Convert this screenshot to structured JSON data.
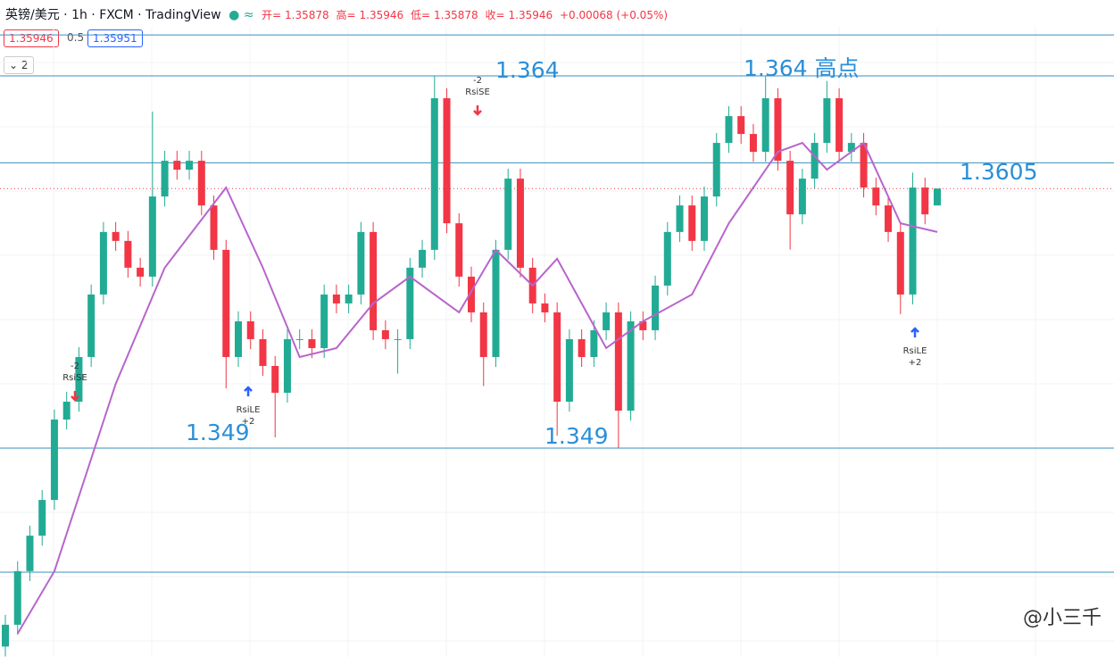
{
  "header": {
    "symbol": "英镑/美元 · 1h · FXCM · TradingView",
    "ohlc_labels": [
      "开=",
      "高=",
      "低=",
      "收="
    ],
    "change": "+0.00068 (+0.05%)",
    "bid": "1.35946",
    "spread": "0.5",
    "ask": "1.35951",
    "indicator_count": "2",
    "watermark": "@小三千"
  },
  "chart_data": {
    "type": "candlestick",
    "up_color": "#22ab94",
    "down_color": "#f23645",
    "ma_color": "#b865cc",
    "level_color": "#3a8fc0",
    "ylim": [
      1.34058,
      1.36598
    ],
    "ohlc": [
      [
        1.341,
        1.34228,
        1.3406,
        1.34188
      ],
      [
        1.34188,
        1.34444,
        1.34148,
        1.34404
      ],
      [
        1.34404,
        1.34587,
        1.34364,
        1.34547
      ],
      [
        1.34547,
        1.34731,
        1.34507,
        1.34691
      ],
      [
        1.34691,
        1.35055,
        1.34651,
        1.35015
      ],
      [
        1.35015,
        1.35127,
        1.34975,
        1.35087
      ],
      [
        1.35087,
        1.35307,
        1.35047,
        1.35267
      ],
      [
        1.35267,
        1.35559,
        1.35227,
        1.35519
      ],
      [
        1.35519,
        1.35811,
        1.35479,
        1.35771
      ],
      [
        1.35771,
        1.35811,
        1.35695,
        1.35735
      ],
      [
        1.35735,
        1.35775,
        1.35587,
        1.35627
      ],
      [
        1.35627,
        1.35667,
        1.35551,
        1.35591
      ],
      [
        1.35591,
        1.36256,
        1.35551,
        1.35914
      ],
      [
        1.35914,
        1.36098,
        1.35874,
        1.36058
      ],
      [
        1.36058,
        1.36098,
        1.35982,
        1.36022
      ],
      [
        1.36022,
        1.36098,
        1.35982,
        1.36058
      ],
      [
        1.36058,
        1.36098,
        1.35838,
        1.35878
      ],
      [
        1.35878,
        1.35918,
        1.35659,
        1.35699
      ],
      [
        1.35699,
        1.35739,
        1.35141,
        1.35267
      ],
      [
        1.35267,
        1.35451,
        1.35227,
        1.35411
      ],
      [
        1.35411,
        1.35451,
        1.35299,
        1.35339
      ],
      [
        1.35339,
        1.35379,
        1.35191,
        1.35231
      ],
      [
        1.35231,
        1.35271,
        1.34943,
        1.35123
      ],
      [
        1.35123,
        1.35379,
        1.35083,
        1.35339
      ],
      [
        1.35339,
        1.35379,
        1.35299,
        1.35339
      ],
      [
        1.35339,
        1.35379,
        1.35263,
        1.35303
      ],
      [
        1.35303,
        1.35559,
        1.35263,
        1.35519
      ],
      [
        1.35519,
        1.35559,
        1.35443,
        1.35483
      ],
      [
        1.35483,
        1.35559,
        1.35443,
        1.35519
      ],
      [
        1.35519,
        1.35811,
        1.35479,
        1.35771
      ],
      [
        1.35771,
        1.35811,
        1.35335,
        1.35375
      ],
      [
        1.35375,
        1.35415,
        1.35299,
        1.35339
      ],
      [
        1.35339,
        1.35379,
        1.352,
        1.35339
      ],
      [
        1.35339,
        1.35667,
        1.35299,
        1.35627
      ],
      [
        1.35627,
        1.35739,
        1.35587,
        1.35699
      ],
      [
        1.35699,
        1.364,
        1.35659,
        1.3631
      ],
      [
        1.3631,
        1.3635,
        1.35766,
        1.35806
      ],
      [
        1.35806,
        1.35846,
        1.35551,
        1.35591
      ],
      [
        1.35591,
        1.35631,
        1.35407,
        1.35447
      ],
      [
        1.35447,
        1.35487,
        1.3515,
        1.35267
      ],
      [
        1.35267,
        1.35739,
        1.35227,
        1.35699
      ],
      [
        1.35699,
        1.36026,
        1.35659,
        1.35986
      ],
      [
        1.35986,
        1.36026,
        1.35587,
        1.35627
      ],
      [
        1.35627,
        1.35667,
        1.35443,
        1.35483
      ],
      [
        1.35483,
        1.35523,
        1.35407,
        1.35447
      ],
      [
        1.35447,
        1.35487,
        1.3495,
        1.35087
      ],
      [
        1.35087,
        1.35379,
        1.35047,
        1.35339
      ],
      [
        1.35339,
        1.35379,
        1.35227,
        1.35267
      ],
      [
        1.35267,
        1.35415,
        1.35227,
        1.35375
      ],
      [
        1.35375,
        1.35487,
        1.35335,
        1.35447
      ],
      [
        1.35447,
        1.35487,
        1.349,
        1.35051
      ],
      [
        1.35051,
        1.35451,
        1.35011,
        1.35411
      ],
      [
        1.35411,
        1.35451,
        1.35335,
        1.35375
      ],
      [
        1.35375,
        1.35595,
        1.35335,
        1.35555
      ],
      [
        1.35555,
        1.35811,
        1.35515,
        1.35771
      ],
      [
        1.35771,
        1.35918,
        1.35731,
        1.35878
      ],
      [
        1.35878,
        1.35918,
        1.35695,
        1.35735
      ],
      [
        1.35735,
        1.35954,
        1.35695,
        1.35914
      ],
      [
        1.35914,
        1.3617,
        1.35874,
        1.3613
      ],
      [
        1.3613,
        1.36278,
        1.3609,
        1.36238
      ],
      [
        1.36238,
        1.36278,
        1.36126,
        1.36166
      ],
      [
        1.36166,
        1.36206,
        1.36054,
        1.36094
      ],
      [
        1.36094,
        1.364,
        1.36054,
        1.3631
      ],
      [
        1.3631,
        1.3635,
        1.36018,
        1.36058
      ],
      [
        1.36058,
        1.36098,
        1.357,
        1.35842
      ],
      [
        1.35842,
        1.36026,
        1.35802,
        1.35986
      ],
      [
        1.35986,
        1.3617,
        1.35946,
        1.3613
      ],
      [
        1.3613,
        1.3638,
        1.3609,
        1.3631
      ],
      [
        1.3631,
        1.3635,
        1.36054,
        1.36094
      ],
      [
        1.36094,
        1.3617,
        1.36054,
        1.3613
      ],
      [
        1.3613,
        1.3617,
        1.3591,
        1.3595
      ],
      [
        1.3595,
        1.3599,
        1.35838,
        1.35878
      ],
      [
        1.35878,
        1.35918,
        1.35731,
        1.35771
      ],
      [
        1.35771,
        1.35811,
        1.3544,
        1.35519
      ],
      [
        1.35519,
        1.3601,
        1.35479,
        1.3595
      ],
      [
        1.3595,
        1.3599,
        1.35802,
        1.35842
      ],
      [
        1.35878,
        1.35946,
        1.35878,
        1.35946
      ]
    ],
    "ma": {
      "x": [
        1,
        4,
        9,
        13,
        18,
        21,
        24,
        27,
        30,
        33,
        37,
        40,
        43,
        45,
        49,
        52,
        56,
        59,
        63,
        65,
        67,
        70,
        73,
        76
      ],
      "values": [
        1.34152,
        1.34404,
        1.35159,
        1.35627,
        1.3595,
        1.35627,
        1.35267,
        1.35303,
        1.35483,
        1.35591,
        1.35447,
        1.35699,
        1.35555,
        1.35663,
        1.35303,
        1.35411,
        1.35519,
        1.35806,
        1.36094,
        1.3613,
        1.36022,
        1.3613,
        1.35806,
        1.35771
      ]
    },
    "levels": [
      1.36565,
      1.364,
      1.3605,
      1.349,
      1.344
    ],
    "annotations": [
      "1.364",
      "1.364 高点",
      "1.3605",
      "1.349",
      "1.349"
    ],
    "signals": [
      {
        "qty": "-2",
        "label": "RsiSE"
      },
      {
        "qty": "+2",
        "label": "RsiLE"
      },
      {
        "qty": "-2",
        "label": "RsiSE"
      },
      {
        "qty": "+2",
        "label": "RsiLE"
      }
    ]
  }
}
